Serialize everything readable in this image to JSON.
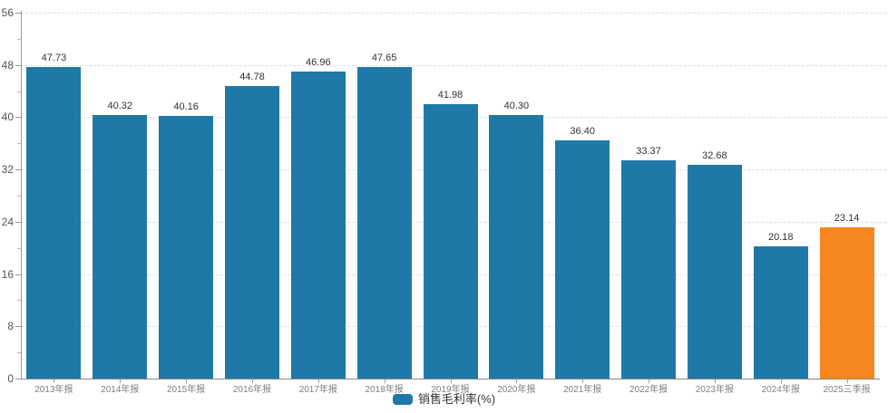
{
  "chart_data": {
    "type": "bar",
    "title": "",
    "xlabel": "",
    "ylabel": "",
    "categories": [
      "2013年报",
      "2014年报",
      "2015年报",
      "2016年报",
      "2017年报",
      "2018年报",
      "2019年报",
      "2020年报",
      "2021年报",
      "2022年报",
      "2023年报",
      "2024年报",
      "2025三季报"
    ],
    "values": [
      47.73,
      40.32,
      40.16,
      44.78,
      46.96,
      47.65,
      41.98,
      40.3,
      36.4,
      33.37,
      32.68,
      20.18,
      23.14
    ],
    "value_labels": [
      "47.73",
      "40.32",
      "40.16",
      "44.78",
      "46.96",
      "47.65",
      "41.98",
      "40.30",
      "36.40",
      "33.37",
      "32.68",
      "20.18",
      "23.14"
    ],
    "series_name": "销售毛利率(%)",
    "ylim": [
      0,
      56
    ],
    "y_ticks": [
      0,
      8,
      16,
      24,
      32,
      40,
      48,
      56
    ],
    "y_minor_ticks": [
      4,
      12,
      20,
      28,
      36,
      44,
      52
    ],
    "grid": true,
    "gridline_style": "dashed",
    "legend_position": "bottom",
    "bar_color": "#1f79a8",
    "highlight_color": "#f5871e",
    "highlight_index": 12
  },
  "legend": {
    "label": "销售毛利率(%)",
    "swatch_color": "#1f79a8"
  },
  "colors": {
    "background": "#ffffff",
    "gridline": "#e0e0e0",
    "axis": "#999999",
    "y_tick_label": "#555555",
    "x_axis_label": "#808080",
    "bar_value_label": "#333333",
    "legend_label": "#333333"
  }
}
